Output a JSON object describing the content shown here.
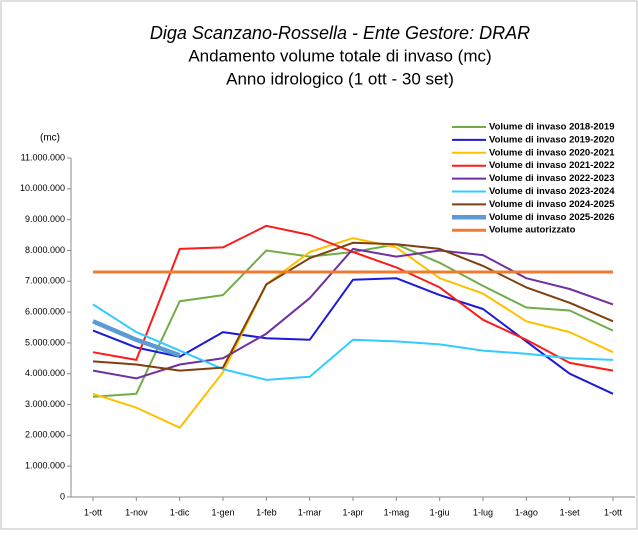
{
  "chart_data": {
    "type": "line",
    "title": "Diga Scanzano-Rossella - Ente Gestore: DRAR",
    "subtitle": [
      "Andamento volume totale di invaso (mc)",
      "Anno idrologico (1 ott - 30 set)"
    ],
    "y_label": "(mc)",
    "categories": [
      "1-ott",
      "1-nov",
      "1-dic",
      "1-gen",
      "1-feb",
      "1-mar",
      "1-apr",
      "1-mag",
      "1-giu",
      "1-lug",
      "1-ago",
      "1-set",
      "1-ott"
    ],
    "ylim": [
      0,
      11000000
    ],
    "yticks": [
      0,
      {
        "value": 1000000,
        "label": "1.000.000"
      },
      {
        "value": 2000000,
        "label": "2.000.000"
      },
      {
        "value": 3000000,
        "label": "3.000.000"
      },
      {
        "value": 4000000,
        "label": "4.000.000"
      },
      {
        "value": 5000000,
        "label": "5.000.000"
      },
      {
        "value": 6000000,
        "label": "6.000.000"
      },
      {
        "value": 7000000,
        "label": "7.000.000"
      },
      {
        "value": 8000000,
        "label": "8.000.000"
      },
      {
        "value": 9000000,
        "label": "9.000.000"
      },
      {
        "value": 10000000,
        "label": "10.000.000"
      },
      {
        "value": 11000000,
        "label": "11.000.000"
      }
    ],
    "grid": false,
    "legend": "upper right",
    "series": [
      {
        "name": "Volume di invaso 2018-2019",
        "color": "#70ad47",
        "width": 2,
        "values": [
          3250000,
          3350000,
          6350000,
          6550000,
          8000000,
          7800000,
          7950000,
          8200000,
          7600000,
          6850000,
          6150000,
          6050000,
          5400000
        ]
      },
      {
        "name": "Volume di invaso 2019-2020",
        "color": "#1a1ad9",
        "width": 2,
        "values": [
          5400000,
          4850000,
          4550000,
          5350000,
          5150000,
          5100000,
          7050000,
          7100000,
          6550000,
          6100000,
          5050000,
          4000000,
          3350000
        ]
      },
      {
        "name": "Volume di invaso 2020-2021",
        "color": "#ffc000",
        "width": 2,
        "values": [
          3350000,
          2900000,
          2250000,
          4050000,
          6900000,
          7950000,
          8400000,
          8100000,
          7100000,
          6600000,
          5700000,
          5350000,
          4700000
        ]
      },
      {
        "name": "Volume di invaso 2021-2022",
        "color": "#ff1a1a",
        "width": 2,
        "values": [
          4700000,
          4450000,
          8050000,
          8100000,
          8800000,
          8500000,
          7950000,
          7450000,
          6800000,
          5750000,
          5100000,
          4350000,
          4100000
        ]
      },
      {
        "name": "Volume di invaso 2022-2023",
        "color": "#7030a0",
        "width": 2,
        "values": [
          4100000,
          3850000,
          4300000,
          4500000,
          5300000,
          6450000,
          8050000,
          7800000,
          8000000,
          7850000,
          7100000,
          6750000,
          6250000
        ]
      },
      {
        "name": "Volume di invaso 2023-2024",
        "color": "#33ccff",
        "width": 2,
        "values": [
          6250000,
          5350000,
          4750000,
          4150000,
          3800000,
          3900000,
          5100000,
          5050000,
          4950000,
          4750000,
          4650000,
          4500000,
          4450000
        ]
      },
      {
        "name": "Volume di invaso 2024-2025",
        "color": "#7f3f0f",
        "width": 2,
        "values": [
          4400000,
          4300000,
          4100000,
          4200000,
          6900000,
          7750000,
          8250000,
          8200000,
          8050000,
          7500000,
          6800000,
          6300000,
          5700000
        ]
      },
      {
        "name": "Volume di invaso 2025-2026",
        "color": "#5b9bd5",
        "width": 4.5,
        "values": [
          5700000,
          5100000,
          4600000,
          null,
          null,
          null,
          null,
          null,
          null,
          null,
          null,
          null,
          null
        ]
      },
      {
        "name": "Volume autorizzato",
        "color": "#ed7d31",
        "width": 3,
        "values": [
          7300000,
          7300000,
          7300000,
          7300000,
          7300000,
          7300000,
          7300000,
          7300000,
          7300000,
          7300000,
          7300000,
          7300000,
          7300000
        ]
      }
    ]
  }
}
